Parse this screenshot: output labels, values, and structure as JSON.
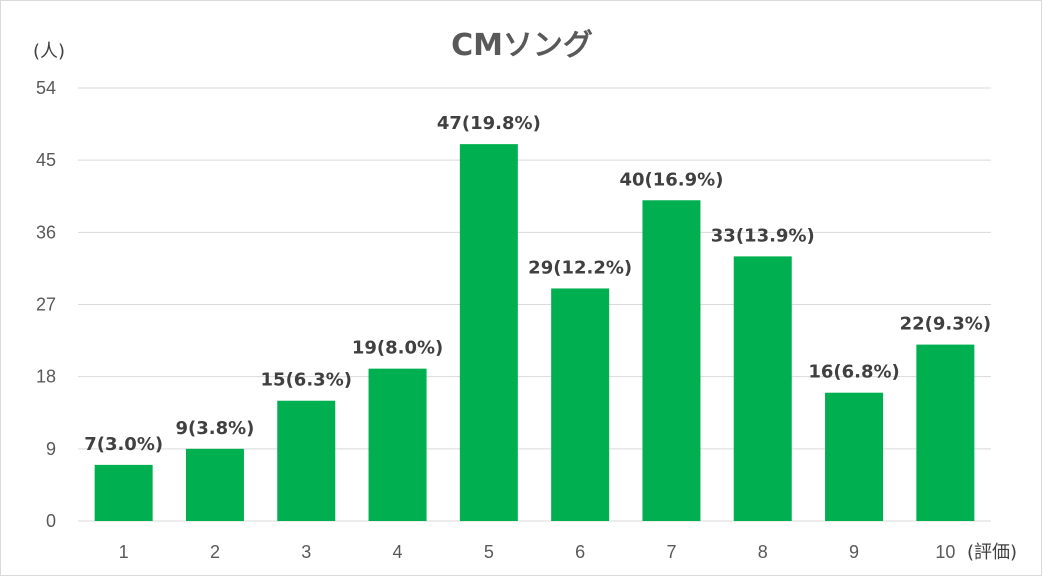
{
  "chart_data": {
    "type": "bar",
    "title": "CMソング",
    "ylabel": "(人)",
    "xlabel": "(評価)",
    "categories": [
      "1",
      "2",
      "3",
      "4",
      "5",
      "6",
      "7",
      "8",
      "9",
      "10"
    ],
    "values": [
      7,
      9,
      15,
      19,
      47,
      29,
      40,
      33,
      16,
      22
    ],
    "data_labels": [
      "7(3.0%)",
      "9(3.8%)",
      "15(6.3%)",
      "19(8.0%)",
      "47(19.8%)",
      "29(12.2%)",
      "40(16.9%)",
      "33(13.9%)",
      "16(6.8%)",
      "22(9.3%)"
    ],
    "y_ticks": [
      "0",
      "9",
      "18",
      "27",
      "36",
      "45",
      "54"
    ],
    "ylim": [
      0,
      54
    ],
    "grid": true,
    "legend": "none",
    "colors": {
      "bar": "#00B050",
      "grid": "#D9D9D9",
      "text": "#595959",
      "frame": "#D9D9D9"
    }
  }
}
